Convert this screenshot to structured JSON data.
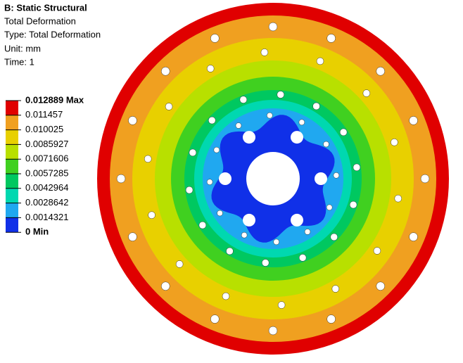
{
  "header": {
    "title": "B: Static Structural",
    "lines": [
      "Total Deformation",
      "Type: Total Deformation",
      "Unit: mm",
      "Time: 1"
    ]
  },
  "legend": {
    "labels": [
      "0.012889 Max",
      "0.011457",
      "0.010025",
      "0.0085927",
      "0.0071606",
      "0.0057285",
      "0.0042964",
      "0.0028642",
      "0.0014321",
      "0 Min"
    ],
    "colors": [
      "#e00000",
      "#f0a020",
      "#e8d000",
      "#b8e000",
      "#40d020",
      "#00c860",
      "#00d8b0",
      "#20a8f0",
      "#1030e8"
    ]
  }
}
